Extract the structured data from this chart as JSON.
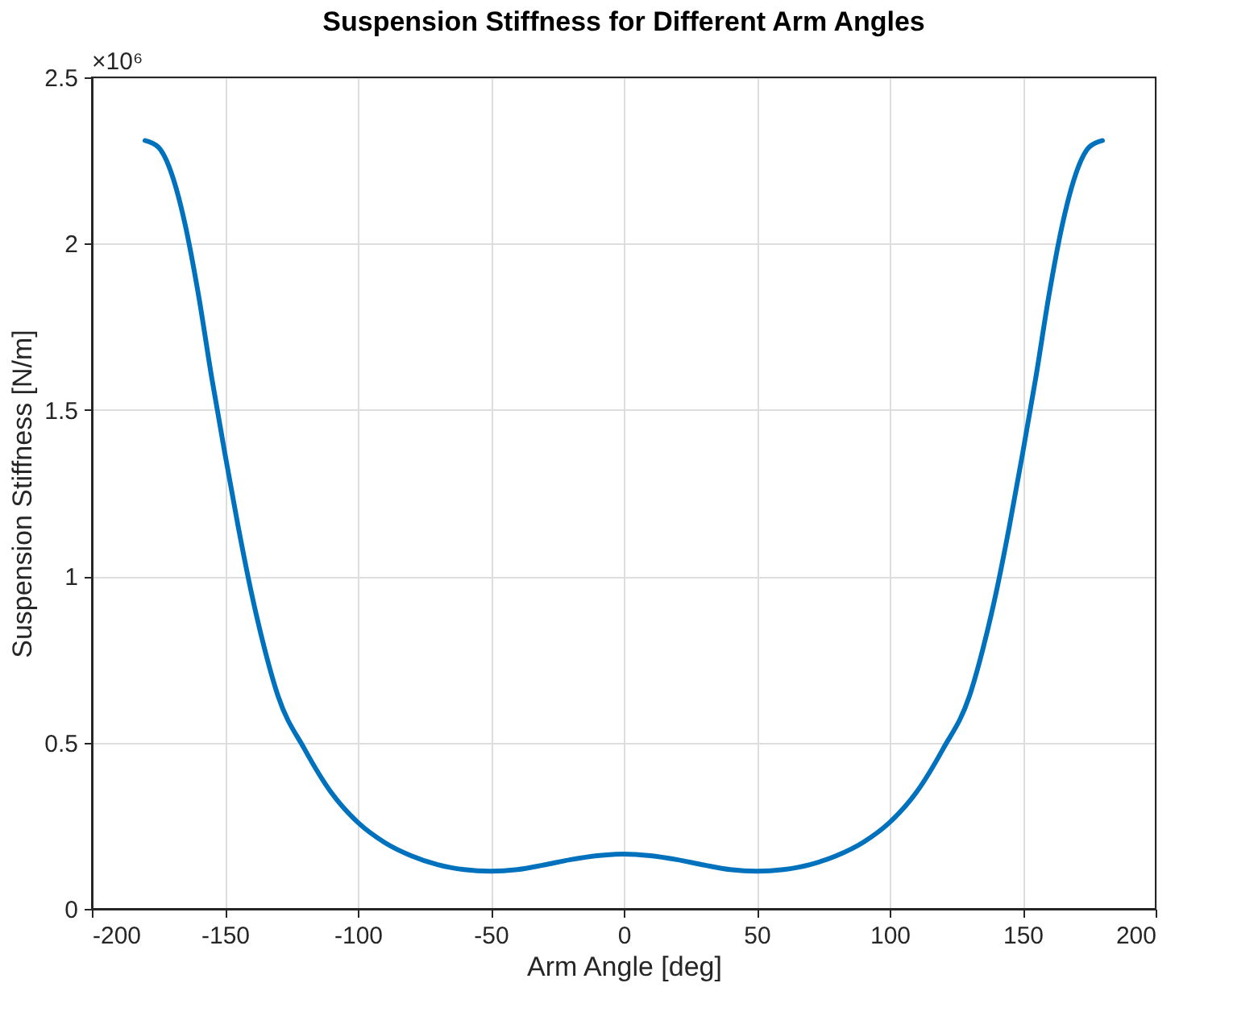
{
  "chart_data": {
    "type": "line",
    "title": "Suspension Stiffness for Different Arm Angles",
    "xlabel": "Arm Angle [deg]",
    "ylabel": "Suspension Stiffness [N/m]",
    "annotations": [
      "×10⁶"
    ],
    "x": [
      -180,
      -175,
      -170,
      -165,
      -160,
      -155,
      -150,
      -145,
      -140,
      -135,
      -130,
      -120,
      -110,
      -100,
      -90,
      -80,
      -70,
      -60,
      -50,
      -40,
      -30,
      -20,
      -10,
      0,
      10,
      20,
      30,
      40,
      50,
      60,
      70,
      80,
      90,
      100,
      110,
      120,
      130,
      135,
      140,
      145,
      150,
      155,
      160,
      165,
      170,
      175,
      180
    ],
    "series": [
      {
        "color": "#0072bd",
        "values": [
          2.31,
          2.29,
          2.21,
          2.06,
          1.85,
          1.6,
          1.37,
          1.15,
          0.95,
          0.78,
          0.64,
          0.48,
          0.35,
          0.26,
          0.2,
          0.16,
          0.133,
          0.118,
          0.113,
          0.118,
          0.132,
          0.148,
          0.16,
          0.165,
          0.16,
          0.148,
          0.132,
          0.118,
          0.113,
          0.118,
          0.133,
          0.16,
          0.2,
          0.26,
          0.35,
          0.48,
          0.64,
          0.78,
          0.95,
          1.15,
          1.37,
          1.6,
          1.85,
          2.06,
          2.21,
          2.29,
          2.31
        ]
      }
    ],
    "xlim": [
      -200,
      200
    ],
    "xticks": [
      -200,
      -150,
      -100,
      -50,
      0,
      50,
      100,
      150,
      200
    ],
    "ylim": [
      0,
      2.5
    ],
    "yticks": [
      0,
      0.5,
      1,
      1.5,
      2,
      2.5
    ],
    "grid": true,
    "line_style": "solid",
    "marker": "none"
  }
}
